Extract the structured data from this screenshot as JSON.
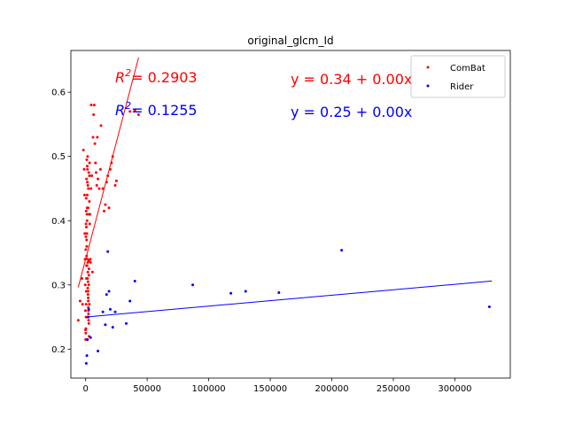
{
  "chart_data": {
    "type": "scatter",
    "title": "original_glcm_Id",
    "xlabel": "",
    "ylabel": "",
    "xlim": [
      -12000,
      345000
    ],
    "ylim": [
      0.155,
      0.665
    ],
    "xticks": [
      0,
      50000,
      100000,
      150000,
      200000,
      250000,
      300000
    ],
    "xtick_labels": [
      "0",
      "50000",
      "100000",
      "150000",
      "200000",
      "250000",
      "300000"
    ],
    "yticks": [
      0.2,
      0.3,
      0.4,
      0.5,
      0.6
    ],
    "ytick_labels": [
      "0.2",
      "0.3",
      "0.4",
      "0.5",
      "0.6"
    ],
    "grid": false,
    "legend": {
      "placement": "top-right"
    },
    "series": [
      {
        "name": "ComBat",
        "color": "#ff0000",
        "marker_radius": 1.5,
        "fit": {
          "intercept": 0.34,
          "slope": 7.3e-06,
          "x_range": [
            -6000,
            43000
          ]
        },
        "r2_label": "= 0.2903",
        "eq_label": "y = 0.34 + 0.00x",
        "points": [
          [
            -6000,
            0.245
          ],
          [
            -4500,
            0.275
          ],
          [
            -3000,
            0.31
          ],
          [
            -2500,
            0.27
          ],
          [
            -1800,
            0.51
          ],
          [
            -1200,
            0.48
          ],
          [
            -900,
            0.44
          ],
          [
            -700,
            0.38
          ],
          [
            -500,
            0.34
          ],
          [
            -300,
            0.3
          ],
          [
            -200,
            0.26
          ],
          [
            -100,
            0.23
          ],
          [
            0,
            0.215
          ],
          [
            100,
            0.225
          ],
          [
            200,
            0.232
          ],
          [
            300,
            0.25
          ],
          [
            400,
            0.27
          ],
          [
            500,
            0.29
          ],
          [
            600,
            0.31
          ],
          [
            700,
            0.33
          ],
          [
            800,
            0.345
          ],
          [
            900,
            0.36
          ],
          [
            1000,
            0.38
          ],
          [
            1100,
            0.4
          ],
          [
            1200,
            0.42
          ],
          [
            1300,
            0.44
          ],
          [
            1400,
            0.46
          ],
          [
            1500,
            0.48
          ],
          [
            1600,
            0.5
          ],
          [
            1700,
            0.335
          ],
          [
            1800,
            0.32
          ],
          [
            1900,
            0.305
          ],
          [
            2000,
            0.29
          ],
          [
            2100,
            0.28
          ],
          [
            2200,
            0.265
          ],
          [
            2300,
            0.255
          ],
          [
            2400,
            0.245
          ],
          [
            2500,
            0.3
          ],
          [
            2600,
            0.315
          ],
          [
            2700,
            0.325
          ],
          [
            2800,
            0.338
          ],
          [
            2900,
            0.41
          ],
          [
            3000,
            0.43
          ],
          [
            3100,
            0.47
          ],
          [
            3200,
            0.49
          ],
          [
            1200,
            0.33
          ],
          [
            1500,
            0.34
          ],
          [
            800,
            0.37
          ],
          [
            600,
            0.39
          ],
          [
            1000,
            0.41
          ],
          [
            2000,
            0.42
          ],
          [
            2200,
            0.45
          ],
          [
            2500,
            0.475
          ],
          [
            1800,
            0.455
          ],
          [
            1300,
            0.485
          ],
          [
            900,
            0.495
          ],
          [
            700,
            0.465
          ],
          [
            500,
            0.435
          ],
          [
            400,
            0.415
          ],
          [
            300,
            0.395
          ],
          [
            200,
            0.375
          ],
          [
            100,
            0.355
          ],
          [
            1500,
            0.31
          ],
          [
            1700,
            0.295
          ],
          [
            1900,
            0.285
          ],
          [
            2100,
            0.275
          ],
          [
            2300,
            0.26
          ],
          [
            2600,
            0.24
          ],
          [
            2800,
            0.22
          ],
          [
            3000,
            0.27
          ],
          [
            3300,
            0.395
          ],
          [
            3500,
            0.41
          ],
          [
            3800,
            0.34
          ],
          [
            4000,
            0.335
          ],
          [
            4300,
            0.45
          ],
          [
            4500,
            0.58
          ],
          [
            5000,
            0.47
          ],
          [
            5500,
            0.32
          ],
          [
            6000,
            0.53
          ],
          [
            6500,
            0.565
          ],
          [
            7000,
            0.58
          ],
          [
            7500,
            0.52
          ],
          [
            8000,
            0.49
          ],
          [
            8500,
            0.475
          ],
          [
            9000,
            0.455
          ],
          [
            9500,
            0.53
          ],
          [
            10000,
            0.465
          ],
          [
            11000,
            0.45
          ],
          [
            12000,
            0.48
          ],
          [
            12500,
            0.548
          ],
          [
            14000,
            0.45
          ],
          [
            15000,
            0.415
          ],
          [
            16000,
            0.425
          ],
          [
            17000,
            0.46
          ],
          [
            18000,
            0.47
          ],
          [
            19000,
            0.42
          ],
          [
            20000,
            0.48
          ],
          [
            21000,
            0.49
          ],
          [
            22000,
            0.5
          ],
          [
            24000,
            0.455
          ],
          [
            25000,
            0.462
          ],
          [
            36000,
            0.57
          ],
          [
            40000,
            0.572
          ],
          [
            43000,
            0.565
          ]
        ]
      },
      {
        "name": "Rider",
        "color": "#0000ff",
        "marker_radius": 1.5,
        "fit": {
          "intercept": 0.25,
          "slope": 1.7e-07,
          "x_range": [
            0,
            330000
          ]
        },
        "r2_label": "= 0.1255",
        "eq_label": "y = 0.25 + 0.00x",
        "points": [
          [
            500,
            0.178
          ],
          [
            1000,
            0.19
          ],
          [
            1500,
            0.215
          ],
          [
            2000,
            0.25
          ],
          [
            2500,
            0.262
          ],
          [
            4000,
            0.218
          ],
          [
            10000,
            0.197
          ],
          [
            14000,
            0.258
          ],
          [
            16000,
            0.238
          ],
          [
            17000,
            0.285
          ],
          [
            18000,
            0.352
          ],
          [
            19000,
            0.29
          ],
          [
            20000,
            0.262
          ],
          [
            22000,
            0.234
          ],
          [
            24000,
            0.258
          ],
          [
            33000,
            0.24
          ],
          [
            36000,
            0.275
          ],
          [
            40000,
            0.306
          ],
          [
            87000,
            0.3
          ],
          [
            118000,
            0.287
          ],
          [
            130000,
            0.29
          ],
          [
            157000,
            0.288
          ],
          [
            208000,
            0.354
          ],
          [
            328000,
            0.266
          ]
        ]
      }
    ]
  }
}
